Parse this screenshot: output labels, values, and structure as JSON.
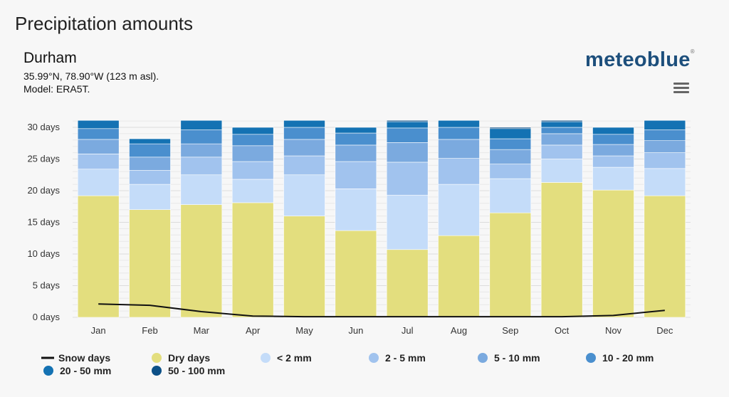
{
  "header": {
    "title": "Precipitation amounts",
    "location": "Durham",
    "coords": "35.99°N, 78.90°W (123 m asl).",
    "model": "Model: ERA5T.",
    "logo": "meteoblue",
    "menu_icon": "hamburger-menu-icon"
  },
  "chart_data": {
    "type": "bar",
    "stacked": true,
    "title": "",
    "xlabel": "",
    "ylabel": "",
    "ylim": [
      0,
      30
    ],
    "y_ticks": [
      "0 days",
      "5 days",
      "10 days",
      "15 days",
      "20 days",
      "25 days",
      "30 days"
    ],
    "grid": true,
    "legend_placement": "bottom",
    "categories": [
      "Jan",
      "Feb",
      "Mar",
      "Apr",
      "May",
      "Jun",
      "Jul",
      "Aug",
      "Sep",
      "Oct",
      "Nov",
      "Dec"
    ],
    "series": [
      {
        "name": "Dry days",
        "color": "#e3de7e",
        "values": [
          19.2,
          17.0,
          17.8,
          18.1,
          16.0,
          13.7,
          10.7,
          12.9,
          16.5,
          21.3,
          20.1,
          19.2
        ]
      },
      {
        "name": "< 2 mm",
        "color": "#c4dcf9",
        "values": [
          4.2,
          4.0,
          4.7,
          3.7,
          6.5,
          6.6,
          8.6,
          8.1,
          5.4,
          3.7,
          3.6,
          4.3
        ]
      },
      {
        "name": "2 - 5 mm",
        "color": "#a1c3ee",
        "values": [
          2.4,
          2.2,
          2.8,
          2.8,
          3.0,
          4.3,
          5.2,
          4.1,
          2.3,
          2.2,
          1.8,
          2.5
        ]
      },
      {
        "name": "5 - 10 mm",
        "color": "#7baadf",
        "values": [
          2.3,
          2.1,
          2.1,
          2.5,
          2.6,
          2.6,
          3.1,
          3.0,
          2.3,
          1.8,
          1.8,
          1.9
        ]
      },
      {
        "name": "10 - 20 mm",
        "color": "#4a8fce",
        "values": [
          1.7,
          2.1,
          2.2,
          1.8,
          1.9,
          1.9,
          2.3,
          1.9,
          1.7,
          1.0,
          1.6,
          1.7
        ]
      },
      {
        "name": "20 - 50 mm",
        "color": "#1472b3",
        "values": [
          1.3,
          0.8,
          1.5,
          1.1,
          1.1,
          0.9,
          1.0,
          1.1,
          1.6,
          0.9,
          1.1,
          1.5
        ]
      },
      {
        "name": "50 - 100 mm",
        "color": "#0c5087",
        "values": [
          0,
          0,
          0,
          0,
          0,
          0,
          0.2,
          0,
          0.2,
          0.2,
          0,
          0
        ]
      }
    ],
    "line_series": {
      "name": "Snow days",
      "color": "#111111",
      "values": [
        2.1,
        1.9,
        0.9,
        0.2,
        0.1,
        0.1,
        0.1,
        0.1,
        0.1,
        0.1,
        0.3,
        1.1
      ]
    }
  }
}
